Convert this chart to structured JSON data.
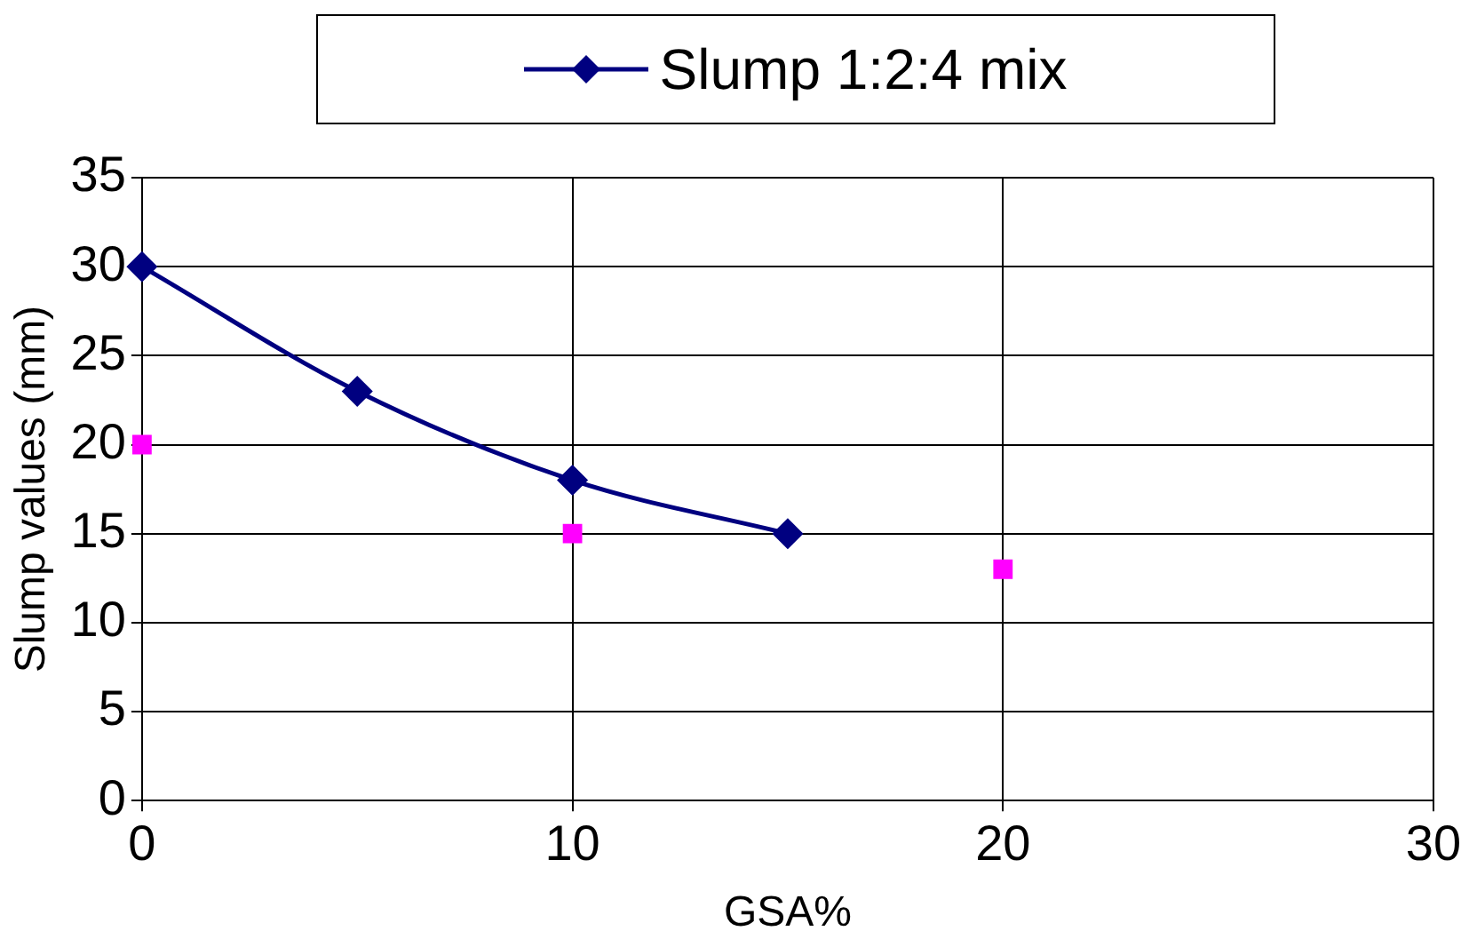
{
  "chart_data": {
    "type": "line",
    "xlabel": "GSA%",
    "ylabel": "Slump values (mm)",
    "xlim": [
      0,
      30
    ],
    "xticks": [
      0,
      10,
      20,
      30
    ],
    "ylim": [
      0,
      35
    ],
    "yticks": [
      0,
      5,
      10,
      15,
      20,
      25,
      30,
      35
    ],
    "grid": true,
    "legend": "top right",
    "series": [
      {
        "name": "Slump 1:2:4 mix",
        "type": "line",
        "color": "#000080",
        "marker": "diamond",
        "x": [
          0,
          5,
          10,
          15
        ],
        "values": [
          30,
          23,
          18,
          15
        ]
      },
      {
        "type": "scatter",
        "color": "#ff00ff",
        "marker": "square",
        "x": [
          0,
          10,
          20
        ],
        "values": [
          20,
          15,
          13
        ]
      }
    ]
  }
}
